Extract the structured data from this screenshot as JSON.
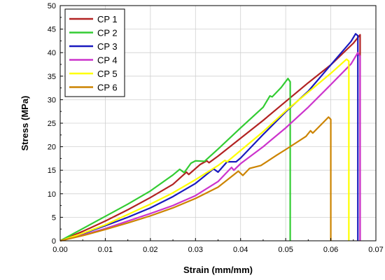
{
  "chart_data": {
    "type": "line",
    "title": "",
    "xlabel": "Strain (mm/mm)",
    "ylabel": "Stress (MPa)",
    "xlim": [
      0.0,
      0.07
    ],
    "ylim": [
      0,
      50
    ],
    "xticks": [
      "0.00",
      "0.01",
      "0.02",
      "0.03",
      "0.04",
      "0.05",
      "0.06",
      "0.07"
    ],
    "yticks": [
      "0",
      "5",
      "10",
      "15",
      "20",
      "25",
      "30",
      "35",
      "40",
      "45",
      "50"
    ],
    "grid": true,
    "legend_position": "top-left",
    "series": [
      {
        "name": "CP 1",
        "color": "#b22222",
        "points": [
          [
            0.0,
            0
          ],
          [
            0.005,
            2.0
          ],
          [
            0.01,
            4.2
          ],
          [
            0.015,
            6.6
          ],
          [
            0.02,
            9.2
          ],
          [
            0.025,
            12.0
          ],
          [
            0.028,
            14.6
          ],
          [
            0.0285,
            14.1
          ],
          [
            0.031,
            16.2
          ],
          [
            0.0325,
            17.0
          ],
          [
            0.033,
            16.6
          ],
          [
            0.035,
            18.0
          ],
          [
            0.04,
            21.8
          ],
          [
            0.045,
            25.6
          ],
          [
            0.05,
            29.6
          ],
          [
            0.055,
            33.6
          ],
          [
            0.06,
            37.4
          ],
          [
            0.065,
            42.0
          ],
          [
            0.0665,
            43.8
          ],
          [
            0.0665,
            0
          ]
        ]
      },
      {
        "name": "CP 2",
        "color": "#33cc33",
        "points": [
          [
            0.0,
            0
          ],
          [
            0.005,
            2.6
          ],
          [
            0.01,
            5.2
          ],
          [
            0.015,
            7.8
          ],
          [
            0.02,
            10.6
          ],
          [
            0.025,
            14.0
          ],
          [
            0.0265,
            15.2
          ],
          [
            0.0275,
            14.5
          ],
          [
            0.029,
            16.5
          ],
          [
            0.03,
            17.0
          ],
          [
            0.032,
            16.9
          ],
          [
            0.035,
            19.5
          ],
          [
            0.04,
            24.0
          ],
          [
            0.045,
            28.4
          ],
          [
            0.0465,
            30.8
          ],
          [
            0.047,
            30.6
          ],
          [
            0.049,
            32.6
          ],
          [
            0.0505,
            34.5
          ],
          [
            0.051,
            33.8
          ],
          [
            0.051,
            0
          ]
        ]
      },
      {
        "name": "CP 3",
        "color": "#1a1abf",
        "points": [
          [
            0.0,
            0
          ],
          [
            0.005,
            1.5
          ],
          [
            0.01,
            3.2
          ],
          [
            0.015,
            5.0
          ],
          [
            0.02,
            7.0
          ],
          [
            0.025,
            9.4
          ],
          [
            0.03,
            12.2
          ],
          [
            0.034,
            15.3
          ],
          [
            0.035,
            14.6
          ],
          [
            0.037,
            16.8
          ],
          [
            0.039,
            16.8
          ],
          [
            0.04,
            17.6
          ],
          [
            0.045,
            22.6
          ],
          [
            0.05,
            27.4
          ],
          [
            0.055,
            31.8
          ],
          [
            0.06,
            37.4
          ],
          [
            0.0645,
            42.4
          ],
          [
            0.0655,
            44.0
          ],
          [
            0.066,
            43.6
          ],
          [
            0.066,
            0
          ]
        ]
      },
      {
        "name": "CP 4",
        "color": "#cc33cc",
        "points": [
          [
            0.0,
            0
          ],
          [
            0.005,
            1.2
          ],
          [
            0.01,
            2.6
          ],
          [
            0.015,
            4.2
          ],
          [
            0.02,
            5.8
          ],
          [
            0.025,
            7.5
          ],
          [
            0.03,
            9.6
          ],
          [
            0.035,
            12.6
          ],
          [
            0.038,
            15.6
          ],
          [
            0.0385,
            15.0
          ],
          [
            0.04,
            16.4
          ],
          [
            0.045,
            20.0
          ],
          [
            0.05,
            24.0
          ],
          [
            0.055,
            28.4
          ],
          [
            0.06,
            33.2
          ],
          [
            0.0645,
            37.6
          ],
          [
            0.066,
            40.0
          ],
          [
            0.0665,
            39.2
          ],
          [
            0.0665,
            0
          ]
        ]
      },
      {
        "name": "CP 5",
        "color": "#ffff00",
        "points": [
          [
            0.0,
            0
          ],
          [
            0.005,
            1.6
          ],
          [
            0.01,
            3.4
          ],
          [
            0.015,
            5.6
          ],
          [
            0.02,
            7.8
          ],
          [
            0.025,
            10.2
          ],
          [
            0.03,
            13.0
          ],
          [
            0.035,
            16.0
          ],
          [
            0.0365,
            17.1
          ],
          [
            0.037,
            16.8
          ],
          [
            0.04,
            19.2
          ],
          [
            0.045,
            23.2
          ],
          [
            0.05,
            27.6
          ],
          [
            0.055,
            31.6
          ],
          [
            0.06,
            35.6
          ],
          [
            0.0635,
            38.6
          ],
          [
            0.064,
            38.2
          ],
          [
            0.064,
            0
          ]
        ]
      },
      {
        "name": "CP 6",
        "color": "#cc8400",
        "points": [
          [
            0.0,
            0
          ],
          [
            0.005,
            1.1
          ],
          [
            0.01,
            2.4
          ],
          [
            0.015,
            3.8
          ],
          [
            0.02,
            5.3
          ],
          [
            0.025,
            7.0
          ],
          [
            0.03,
            9.0
          ],
          [
            0.035,
            11.4
          ],
          [
            0.0395,
            14.8
          ],
          [
            0.0405,
            13.9
          ],
          [
            0.042,
            15.4
          ],
          [
            0.0445,
            16.0
          ],
          [
            0.048,
            18.2
          ],
          [
            0.05,
            19.4
          ],
          [
            0.0545,
            22.2
          ],
          [
            0.0555,
            23.4
          ],
          [
            0.056,
            22.9
          ],
          [
            0.0595,
            26.3
          ],
          [
            0.06,
            25.8
          ],
          [
            0.06,
            0
          ]
        ]
      }
    ]
  }
}
